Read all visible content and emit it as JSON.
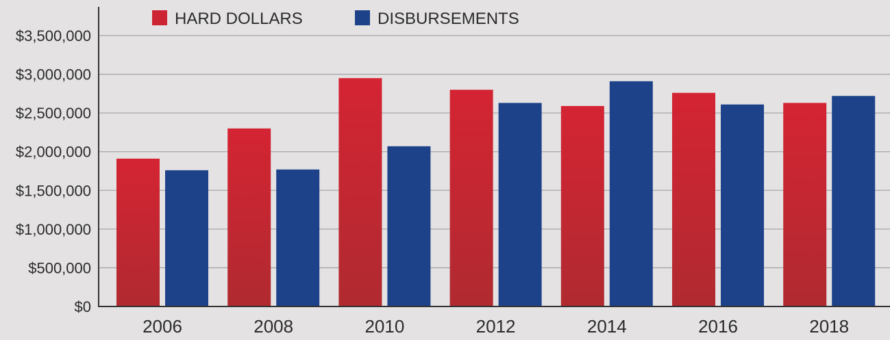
{
  "chart_data": {
    "type": "bar",
    "title": "",
    "xlabel": "",
    "ylabel": "",
    "categories": [
      "2006",
      "2008",
      "2010",
      "2012",
      "2014",
      "2016",
      "2018"
    ],
    "series": [
      {
        "name": "HARD DOLLARS",
        "color": "#cc2432",
        "values": [
          1910000,
          2300000,
          2950000,
          2800000,
          2590000,
          2760000,
          2630000
        ]
      },
      {
        "name": "DISBURSEMENTS",
        "color": "#1d4289",
        "values": [
          1760000,
          1770000,
          2070000,
          2630000,
          2910000,
          2610000,
          2720000
        ]
      }
    ],
    "ylim": [
      0,
      3500000
    ],
    "yticks": [
      {
        "value": 0,
        "label": "$0"
      },
      {
        "value": 500000,
        "label": "$500,000"
      },
      {
        "value": 1000000,
        "label": "$1,000,000"
      },
      {
        "value": 1500000,
        "label": "$1,500,000"
      },
      {
        "value": 2000000,
        "label": "$2,000,000"
      },
      {
        "value": 2500000,
        "label": "$2,500,000"
      },
      {
        "value": 3000000,
        "label": "$3,000,000"
      },
      {
        "value": 3500000,
        "label": "$3,500,000"
      }
    ],
    "grid": true,
    "legend": "top-left"
  }
}
